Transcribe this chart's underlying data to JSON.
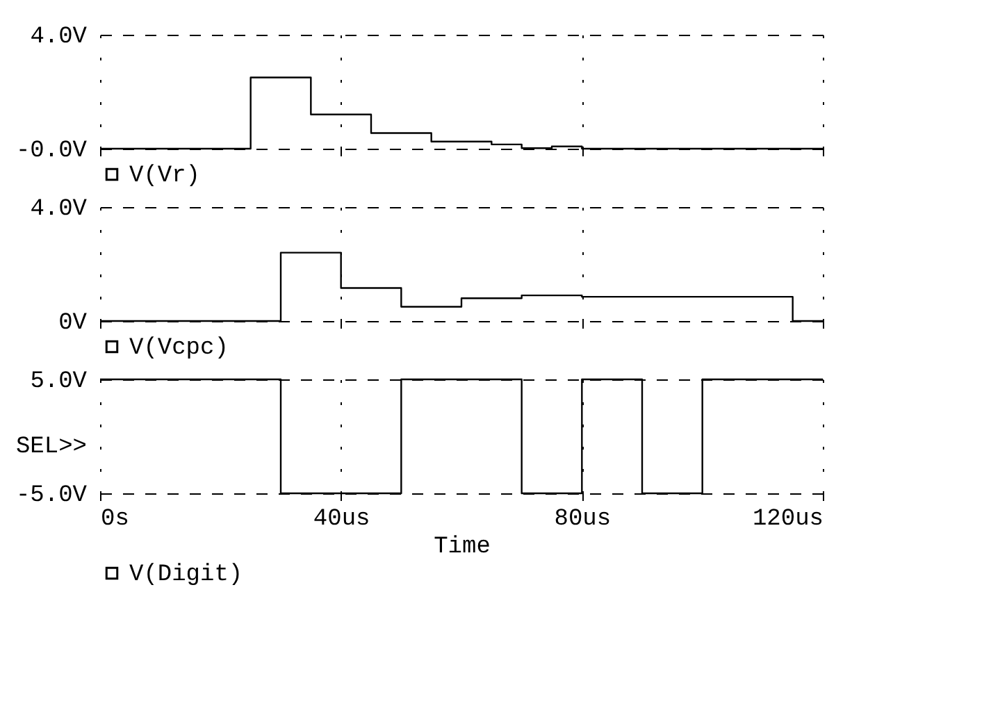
{
  "chart_data": [
    {
      "type": "step",
      "x": [
        0,
        25,
        35,
        45,
        55,
        65,
        70,
        75,
        80,
        120
      ],
      "xlim": [
        0,
        120
      ],
      "xticks": [
        {
          "value": 0,
          "label": null
        },
        {
          "value": 40,
          "label": null
        },
        {
          "value": 80,
          "label": null
        },
        {
          "value": 120,
          "label": null
        }
      ],
      "ylim": [
        0,
        4
      ],
      "yticks": [
        {
          "value": 4,
          "label": "4.0V"
        },
        {
          "value": 0,
          "label": "-0.0V"
        }
      ],
      "tick_labels": "y",
      "grid": true,
      "legend": "bottom",
      "series": [
        {
          "name": "V(Vr)",
          "color": "#000000",
          "values": [
            0,
            2.5,
            1.2,
            0.55,
            0.25,
            0.15,
            0.02,
            0.08,
            0,
            0
          ]
        }
      ]
    },
    {
      "type": "step",
      "x": [
        0,
        30,
        40,
        50,
        60,
        70,
        80,
        115,
        120
      ],
      "xlim": [
        0,
        120
      ],
      "xticks": [
        {
          "value": 0,
          "label": null
        },
        {
          "value": 40,
          "label": null
        },
        {
          "value": 80,
          "label": null
        },
        {
          "value": 120,
          "label": null
        }
      ],
      "ylim": [
        0,
        4
      ],
      "yticks": [
        {
          "value": 4,
          "label": "4.0V"
        },
        {
          "value": 0,
          "label": "0V"
        }
      ],
      "tick_labels": "y",
      "grid": true,
      "legend": "bottom",
      "series": [
        {
          "name": "V(Vcpc)",
          "color": "#000000",
          "values": [
            0,
            2.4,
            1.16,
            0.5,
            0.8,
            0.9,
            0.85,
            0,
            0
          ]
        }
      ]
    },
    {
      "type": "step",
      "x": [
        0,
        30,
        50,
        70,
        80,
        90,
        100,
        120
      ],
      "xlim": [
        0,
        120
      ],
      "xticks": [
        {
          "value": 0,
          "label": "0s"
        },
        {
          "value": 40,
          "label": "40us"
        },
        {
          "value": 80,
          "label": "80us"
        },
        {
          "value": 120,
          "label": "120us"
        }
      ],
      "ylim": [
        -5,
        5
      ],
      "yticks": [
        {
          "value": 5,
          "label": "5.0V"
        },
        {
          "value": -5,
          "label": "-5.0V"
        }
      ],
      "ylabel": "SEL>>",
      "xlabel": "Time",
      "grid": true,
      "legend": "bottom",
      "series": [
        {
          "name": "V(Digit)",
          "color": "#000000",
          "values": [
            5,
            -5,
            5,
            -5,
            5,
            -5,
            5,
            5
          ]
        }
      ]
    }
  ]
}
